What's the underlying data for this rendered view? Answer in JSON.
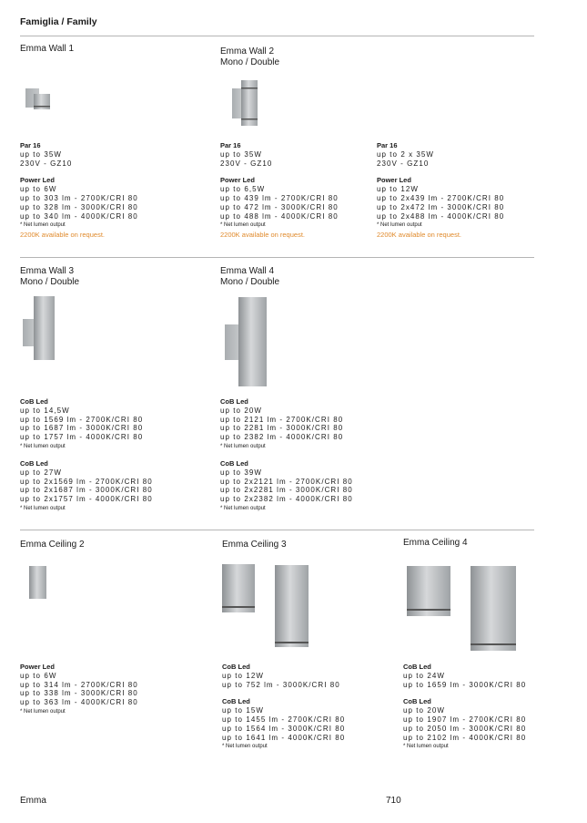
{
  "header": {
    "title": "Famiglia / Family"
  },
  "products": [
    {
      "name": [
        "Emma Wall 1"
      ],
      "blocks": [
        {
          "heading": "Par 16",
          "lines": [
            "up to 35W",
            "230V - GZ10"
          ]
        },
        {
          "heading": "Power Led",
          "lines": [
            "up to 6W",
            "up to 303 lm - 2700K/CRI 80",
            "up to 328 lm - 3000K/CRI 80",
            "up to 340 lm - 4000K/CRI 80"
          ],
          "note": "* Net lumen output",
          "highlight": "2200K available on request."
        }
      ]
    },
    {
      "name": [
        "Emma Wall 2",
        "Mono / Double"
      ],
      "blocks": [
        {
          "heading": "Par 16",
          "lines": [
            "up to 35W",
            "230V - GZ10"
          ]
        },
        {
          "heading": "Power Led",
          "lines": [
            "up to 6,5W",
            "up to 439 lm - 2700K/CRI 80",
            "up to 472 lm - 3000K/CRI 80",
            "up to 488 lm - 4000K/CRI 80"
          ],
          "note": "* Net lumen output",
          "highlight": "2200K available on request."
        }
      ]
    },
    {
      "blocks": [
        {
          "heading": "Par 16",
          "lines": [
            "up to 2 x 35W",
            "230V - GZ10"
          ]
        },
        {
          "heading": "Power Led",
          "lines": [
            "up to 12W",
            "up to 2x439 lm - 2700K/CRI 80",
            "up to 2x472 lm - 3000K/CRI 80",
            "up to 2x488 lm - 4000K/CRI 80"
          ],
          "note": "* Net lumen output",
          "highlight": "2200K available on request."
        }
      ]
    },
    {
      "name": [
        "Emma Wall 3",
        "Mono / Double"
      ],
      "blocks": [
        {
          "heading": "CoB Led",
          "lines": [
            "up to 14,5W",
            "up to 1569 lm - 2700K/CRI 80",
            "up to 1687 lm - 3000K/CRI 80",
            "up to 1757 lm - 4000K/CRI 80"
          ],
          "note": "* Net lumen output"
        },
        {
          "heading": "CoB Led",
          "lines": [
            "up to 27W",
            "up to 2x1569 lm - 2700K/CRI 80",
            "up to 2x1687 lm - 3000K/CRI 80",
            "up to 2x1757 lm - 4000K/CRI 80"
          ],
          "note": "* Net lumen output"
        }
      ]
    },
    {
      "name": [
        "Emma Wall 4",
        "Mono / Double"
      ],
      "blocks": [
        {
          "heading": "CoB Led",
          "lines": [
            "up to 20W",
            "up to 2121 lm - 2700K/CRI 80",
            "up to 2281 lm - 3000K/CRI 80",
            "up to 2382 lm - 4000K/CRI 80"
          ],
          "note": "* Net lumen output"
        },
        {
          "heading": "CoB Led",
          "lines": [
            "up to 39W",
            "up to 2x2121 lm - 2700K/CRI 80",
            "up to 2x2281 lm - 3000K/CRI 80",
            "up to 2x2382 lm - 4000K/CRI 80"
          ],
          "note": "* Net lumen output"
        }
      ]
    },
    {
      "name": [
        "Emma Ceiling 2"
      ],
      "blocks": [
        {
          "heading": "Power Led",
          "lines": [
            "up to 6W",
            "up to 314 lm - 2700K/CRI 80",
            "up to 338 lm - 3000K/CRI 80",
            "up to 363 lm - 4000K/CRI 80"
          ],
          "note": "* Net lumen output"
        }
      ]
    },
    {
      "name": [
        "Emma Ceiling 3"
      ],
      "blocks": [
        {
          "heading": "CoB Led",
          "lines": [
            "up to 12W",
            "up to 752 lm - 3000K/CRI 80"
          ]
        },
        {
          "heading": "CoB Led",
          "lines": [
            "up to 15W",
            "up to 1455 lm - 2700K/CRI 80",
            "up to 1564 lm - 3000K/CRI 80",
            "up to 1641 lm - 4000K/CRI 80"
          ],
          "note": "* Net lumen output"
        }
      ]
    },
    {
      "name": [
        "Emma Ceiling 4"
      ],
      "blocks": [
        {
          "heading": "CoB Led",
          "lines": [
            "up to 24W",
            "up to 1659 lm - 3000K/CRI 80"
          ]
        },
        {
          "heading": "CoB Led",
          "lines": [
            "up to 20W",
            "up to 1907 lm - 2700K/CRI 80",
            "up to 2050 lm - 3000K/CRI 80",
            "up to 2102 lm - 4000K/CRI 80"
          ],
          "note": "* Net lumen output"
        }
      ]
    }
  ],
  "footer": {
    "left": "Emma",
    "page": "710"
  }
}
